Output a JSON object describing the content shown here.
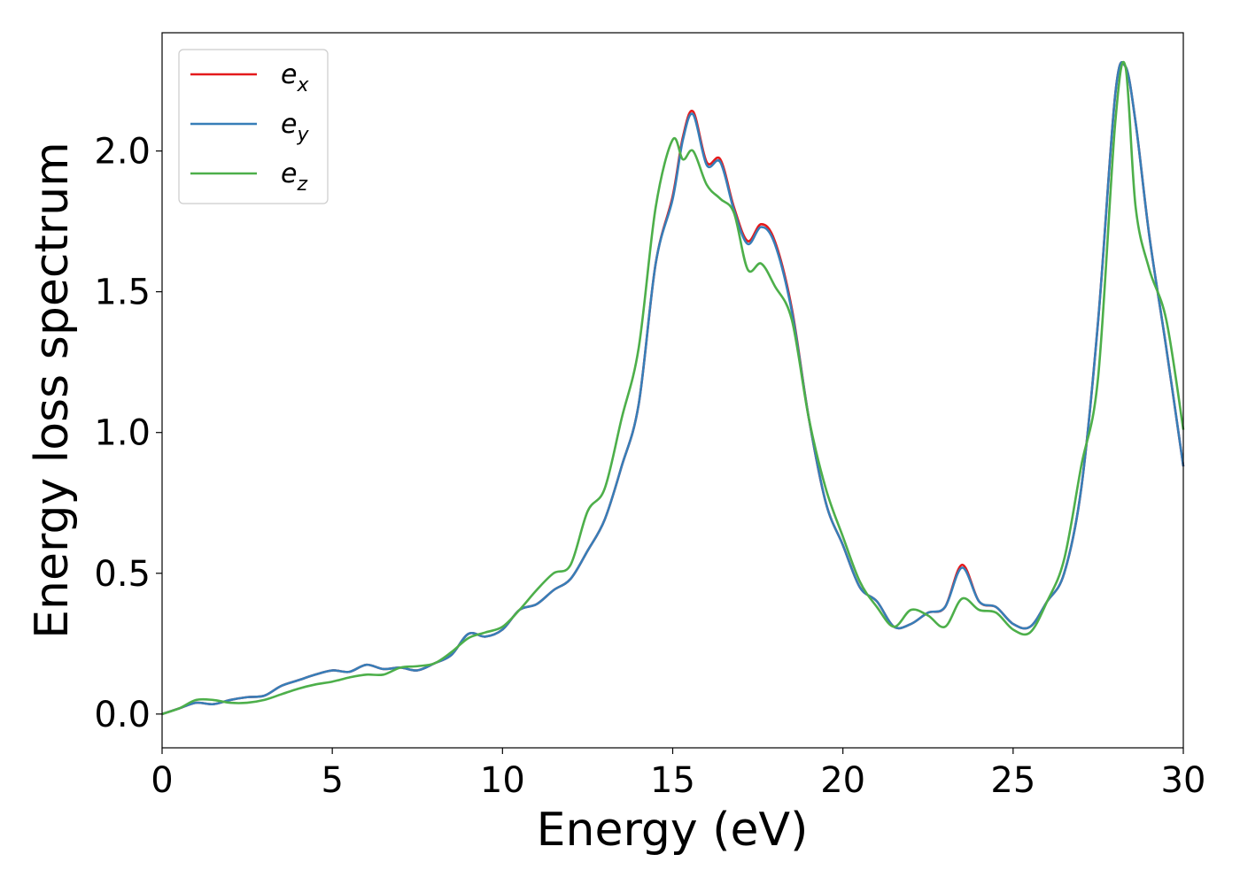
{
  "chart_data": {
    "type": "line",
    "xlabel": "Energy (eV)",
    "ylabel": "Energy loss spectrum",
    "xlim": [
      0,
      30
    ],
    "ylim": [
      -0.12,
      2.42
    ],
    "xticks": [
      0,
      5,
      10,
      15,
      20,
      25,
      30
    ],
    "xtick_labels": [
      "0",
      "5",
      "10",
      "15",
      "20",
      "25",
      "30"
    ],
    "yticks": [
      0.0,
      0.5,
      1.0,
      1.5,
      2.0
    ],
    "ytick_labels": [
      "0.0",
      "0.5",
      "1.0",
      "1.5",
      "2.0"
    ],
    "grid": false,
    "legend_position": "top-left",
    "series": [
      {
        "name": "e_x",
        "legend_base": "e",
        "legend_sub": "x",
        "color": "#e41a1c",
        "x": [
          0,
          0.5,
          1,
          1.5,
          2,
          2.5,
          3,
          3.5,
          4,
          4.5,
          5,
          5.5,
          6,
          6.5,
          7,
          7.5,
          8,
          8.5,
          9,
          9.5,
          10,
          10.5,
          11,
          11.5,
          12,
          12.5,
          13,
          13.5,
          14,
          14.5,
          15,
          15.3,
          15.6,
          16.0,
          16.4,
          16.8,
          17.2,
          17.6,
          18.0,
          18.5,
          19,
          19.5,
          20,
          20.5,
          21,
          21.5,
          22,
          22.5,
          23,
          23.5,
          24,
          24.5,
          25,
          25.5,
          26,
          26.5,
          27,
          27.5,
          28,
          28.3,
          28.6,
          29,
          29.5,
          30
        ],
        "y": [
          0.0,
          0.02,
          0.04,
          0.035,
          0.05,
          0.06,
          0.065,
          0.1,
          0.12,
          0.14,
          0.155,
          0.15,
          0.175,
          0.16,
          0.165,
          0.155,
          0.18,
          0.21,
          0.285,
          0.275,
          0.3,
          0.37,
          0.39,
          0.44,
          0.48,
          0.58,
          0.69,
          0.88,
          1.1,
          1.6,
          1.84,
          2.05,
          2.14,
          1.96,
          1.97,
          1.8,
          1.68,
          1.74,
          1.68,
          1.44,
          1.05,
          0.75,
          0.6,
          0.45,
          0.4,
          0.31,
          0.32,
          0.36,
          0.38,
          0.53,
          0.4,
          0.38,
          0.32,
          0.31,
          0.4,
          0.5,
          0.8,
          1.4,
          2.2,
          2.3,
          2.1,
          1.7,
          1.3,
          0.88
        ]
      },
      {
        "name": "e_y",
        "legend_base": "e",
        "legend_sub": "y",
        "color": "#377eb8",
        "x": [
          0,
          0.5,
          1,
          1.5,
          2,
          2.5,
          3,
          3.5,
          4,
          4.5,
          5,
          5.5,
          6,
          6.5,
          7,
          7.5,
          8,
          8.5,
          9,
          9.5,
          10,
          10.5,
          11,
          11.5,
          12,
          12.5,
          13,
          13.5,
          14,
          14.5,
          15,
          15.3,
          15.6,
          16.0,
          16.4,
          16.8,
          17.2,
          17.6,
          18.0,
          18.5,
          19,
          19.5,
          20,
          20.5,
          21,
          21.5,
          22,
          22.5,
          23,
          23.5,
          24,
          24.5,
          25,
          25.5,
          26,
          26.5,
          27,
          27.5,
          28,
          28.3,
          28.6,
          29,
          29.5,
          30
        ],
        "y": [
          0.0,
          0.02,
          0.04,
          0.035,
          0.05,
          0.06,
          0.065,
          0.1,
          0.12,
          0.14,
          0.155,
          0.15,
          0.175,
          0.16,
          0.165,
          0.155,
          0.18,
          0.21,
          0.285,
          0.275,
          0.3,
          0.37,
          0.39,
          0.44,
          0.48,
          0.58,
          0.69,
          0.88,
          1.1,
          1.6,
          1.83,
          2.04,
          2.13,
          1.95,
          1.96,
          1.79,
          1.67,
          1.73,
          1.67,
          1.43,
          1.05,
          0.75,
          0.6,
          0.45,
          0.4,
          0.31,
          0.32,
          0.36,
          0.38,
          0.52,
          0.4,
          0.38,
          0.32,
          0.31,
          0.4,
          0.5,
          0.8,
          1.4,
          2.2,
          2.3,
          2.1,
          1.7,
          1.3,
          0.88
        ]
      },
      {
        "name": "e_z",
        "legend_base": "e",
        "legend_sub": "z",
        "color": "#4daf4a",
        "x": [
          0,
          0.5,
          1,
          1.5,
          2,
          2.5,
          3,
          3.5,
          4,
          4.5,
          5,
          5.5,
          6,
          6.5,
          7,
          7.5,
          8,
          8.5,
          9,
          9.5,
          10,
          10.5,
          11,
          11.5,
          12,
          12.5,
          13,
          13.5,
          14,
          14.5,
          15,
          15.3,
          15.6,
          16.0,
          16.4,
          16.8,
          17.2,
          17.6,
          18.0,
          18.5,
          19,
          19.5,
          20,
          20.5,
          21,
          21.5,
          22,
          22.5,
          23,
          23.5,
          24,
          24.5,
          25,
          25.5,
          26,
          26.5,
          27,
          27.5,
          28,
          28.3,
          28.6,
          29,
          29.5,
          30
        ],
        "y": [
          0.0,
          0.02,
          0.05,
          0.05,
          0.04,
          0.04,
          0.05,
          0.07,
          0.09,
          0.105,
          0.115,
          0.13,
          0.14,
          0.14,
          0.165,
          0.17,
          0.18,
          0.22,
          0.27,
          0.29,
          0.31,
          0.37,
          0.44,
          0.5,
          0.53,
          0.72,
          0.8,
          1.05,
          1.3,
          1.8,
          2.04,
          1.97,
          2.0,
          1.88,
          1.83,
          1.78,
          1.58,
          1.6,
          1.52,
          1.4,
          1.05,
          0.8,
          0.63,
          0.47,
          0.38,
          0.31,
          0.37,
          0.35,
          0.31,
          0.41,
          0.37,
          0.36,
          0.3,
          0.29,
          0.4,
          0.55,
          0.88,
          1.2,
          2.1,
          2.3,
          1.8,
          1.58,
          1.4,
          1.01
        ]
      }
    ]
  }
}
